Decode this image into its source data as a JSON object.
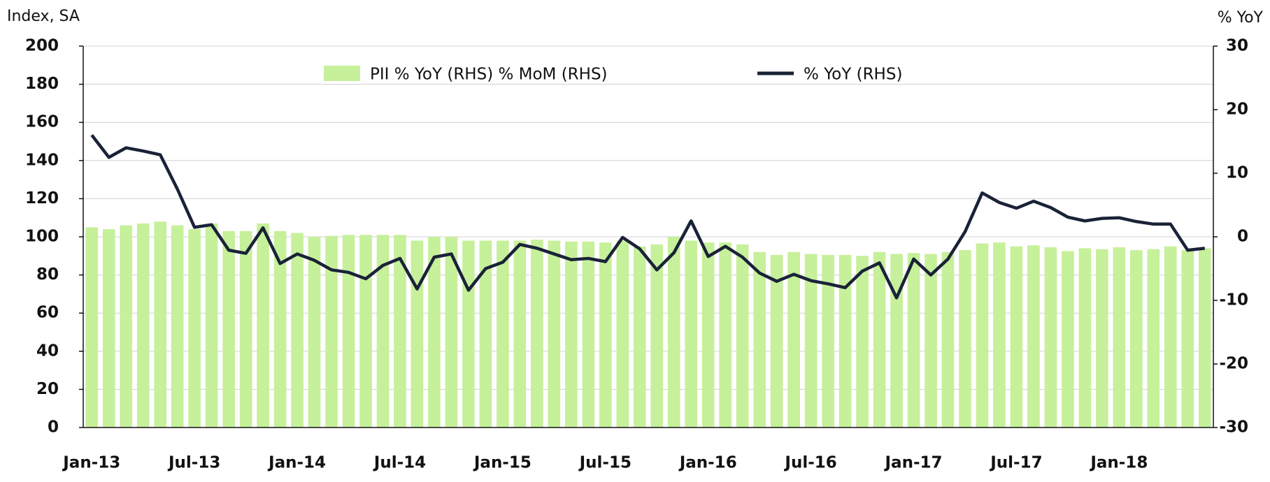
{
  "chart_data": {
    "type": "bar_line",
    "y_label": "Index, SA",
    "y2_label": "% YoY",
    "categories": [
      "Jan-13",
      null,
      null,
      null,
      null,
      null,
      "Jul-13",
      null,
      null,
      null,
      null,
      null,
      "Jan-14",
      null,
      null,
      null,
      null,
      null,
      "Jul-14",
      null,
      null,
      null,
      null,
      null,
      "Jan-15",
      null,
      null,
      null,
      null,
      null,
      "Jul-15",
      null,
      null,
      null,
      null,
      null,
      "Jan-16",
      null,
      null,
      null,
      null,
      null,
      "Jul-16",
      null,
      null,
      null,
      null,
      null,
      "Jan-17",
      null,
      null,
      null,
      null,
      null,
      "Jul-17",
      null,
      null,
      null,
      null,
      null,
      "Jan-18",
      null,
      null,
      null,
      null,
      null
    ],
    "series": [
      {
        "name": "PII  % YoY (RHS) % MoM (RHS)",
        "type": "bar",
        "color": "#c6f09a",
        "values": [
          105,
          104,
          106,
          107,
          108,
          106,
          104,
          107,
          103,
          103,
          107,
          103,
          102,
          100,
          100.5,
          101,
          101,
          101,
          101,
          98,
          100,
          100,
          98,
          98,
          98,
          98,
          98.5,
          98,
          97.5,
          97.5,
          97,
          98,
          95,
          96,
          100,
          98,
          97,
          97,
          96,
          92,
          90.5,
          92,
          91,
          90.5,
          90.5,
          90,
          92,
          91,
          91.5,
          91,
          92,
          93,
          96.5,
          97,
          95,
          95.5,
          94.5,
          92.5,
          94,
          93.5,
          94.5,
          93,
          93.5,
          95,
          93,
          94
        ]
      },
      {
        "name": "% YoY (RHS)",
        "type": "line",
        "axis": "y2",
        "color": "#1a2238",
        "values": [
          16,
          12.5,
          14,
          13.5,
          12.9,
          7.5,
          1.5,
          1.9,
          -2.1,
          -2.6,
          1.4,
          -4.2,
          -2.7,
          -3.7,
          -5.2,
          -5.6,
          -6.6,
          -4.5,
          -3.4,
          -8.2,
          -3.2,
          -2.7,
          -8.4,
          -5,
          -4,
          -1.2,
          -1.8,
          -2.7,
          -3.6,
          -3.4,
          -3.9,
          -0.1,
          -1.9,
          -5.2,
          -2.5,
          2.5,
          -3.1,
          -1.5,
          -3.2,
          -5.7,
          -7,
          -5.9,
          -6.9,
          -7.4,
          -8,
          -5.4,
          -4.1,
          -9.6,
          -3.5,
          -6,
          -3.5,
          0.8,
          6.9,
          5.4,
          4.5,
          5.6,
          4.6,
          3.1,
          2.5,
          2.9,
          3,
          2.4,
          2,
          2,
          -2.1,
          -1.8
        ]
      }
    ],
    "ylim": [
      0,
      200
    ],
    "yticks": [
      0,
      20,
      40,
      60,
      80,
      100,
      120,
      140,
      160,
      180,
      200
    ],
    "y2lim": [
      -30,
      30
    ],
    "y2ticks": [
      -30,
      -20,
      -10,
      0,
      10,
      20,
      30
    ],
    "grid": true,
    "legend": "top"
  }
}
